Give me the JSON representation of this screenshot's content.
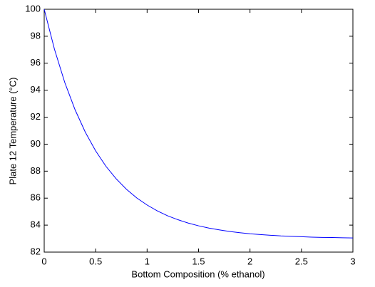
{
  "chart_data": {
    "type": "line",
    "x_label": "Bottom Composition (% ethanol)",
    "y_label": "Plate 12 Temperature (°C)",
    "x": [
      0,
      0.1,
      0.2,
      0.3,
      0.4,
      0.5,
      0.6,
      0.7,
      0.8,
      0.9,
      1.0,
      1.1,
      1.2,
      1.3,
      1.4,
      1.5,
      1.6,
      1.7,
      1.8,
      1.9,
      2.0,
      2.1,
      2.2,
      2.3,
      2.4,
      2.5,
      2.6,
      2.7,
      2.8,
      2.9,
      3.0
    ],
    "series": [
      {
        "color": "#0000ff",
        "values": [
          100,
          97.03,
          94.57,
          92.55,
          90.88,
          89.5,
          88.36,
          87.43,
          86.65,
          86.01,
          85.49,
          85.05,
          84.69,
          84.4,
          84.15,
          83.95,
          83.78,
          83.65,
          83.53,
          83.44,
          83.36,
          83.3,
          83.25,
          83.2,
          83.17,
          83.14,
          83.11,
          83.09,
          83.08,
          83.06,
          83.05
        ]
      }
    ],
    "xlim": [
      0,
      3
    ],
    "xticks": [
      0,
      0.5,
      1,
      1.5,
      2,
      2.5,
      3
    ],
    "ylim": [
      82,
      100
    ],
    "yticks": [
      82,
      84,
      86,
      88,
      90,
      92,
      94,
      96,
      98,
      100
    ],
    "grid": false
  }
}
